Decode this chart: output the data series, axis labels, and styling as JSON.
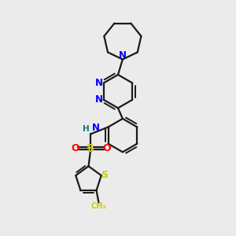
{
  "background_color": "#ebebeb",
  "bond_color": "#1a1a1a",
  "N_color": "#0000ff",
  "S_color": "#cccc00",
  "O_color": "#ff0000",
  "H_color": "#008080",
  "lw": 1.6,
  "lw_inner": 1.4,
  "fig_width": 3.0,
  "fig_height": 3.0,
  "dpi": 100,
  "xlim": [
    0,
    10
  ],
  "ylim": [
    0,
    10
  ]
}
